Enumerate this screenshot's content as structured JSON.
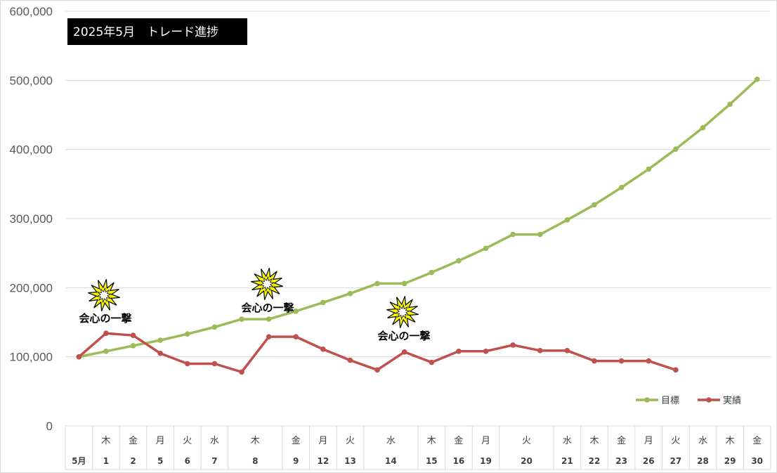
{
  "chart_data": {
    "type": "line",
    "title": "2025年5月　トレード進捗",
    "ylim": [
      0,
      600000
    ],
    "yticks": [
      "0",
      "100,000",
      "200,000",
      "300,000",
      "400,000",
      "500,000",
      "600,000"
    ],
    "ytick_values": [
      0,
      100000,
      200000,
      300000,
      400000,
      500000,
      600000
    ],
    "categories": [
      "5月",
      "1",
      "2",
      "5",
      "6",
      "7",
      "8",
      "",
      "9",
      "12",
      "13",
      "14",
      "",
      "15",
      "16",
      "19",
      "20",
      "",
      "21",
      "22",
      "23",
      "26",
      "27",
      "28",
      "29",
      "30"
    ],
    "weekdays": [
      "",
      "木",
      "金",
      "月",
      "火",
      "水",
      "木",
      "",
      "金",
      "月",
      "火",
      "水",
      "",
      "木",
      "金",
      "月",
      "火",
      "",
      "水",
      "木",
      "金",
      "月",
      "火",
      "水",
      "木",
      "金"
    ],
    "series": [
      {
        "name": "目標",
        "color": "#9BBB59",
        "values": [
          100000,
          108000,
          116000,
          124000,
          133000,
          143000,
          154500,
          154500,
          166000,
          178500,
          191500,
          206000,
          206000,
          222000,
          239000,
          257000,
          277000,
          277000,
          298000,
          320000,
          345000,
          371500,
          400500,
          431500,
          465500,
          501500
        ]
      },
      {
        "name": "実績",
        "color": "#C0504D",
        "values": [
          100000,
          134000,
          131000,
          105000,
          90000,
          90000,
          78000,
          129000,
          129000,
          111000,
          95000,
          81000,
          107000,
          92000,
          108000,
          108000,
          117000,
          109000,
          109000,
          94000,
          94000,
          94000,
          81000,
          null,
          null,
          null
        ]
      }
    ],
    "annotations": [
      {
        "text": "会心の一撃",
        "category_index": 1
      },
      {
        "text": "会心の一撃",
        "category_index": 7
      },
      {
        "text": "会心の一撃",
        "category_index": 12
      }
    ],
    "legend_position": "bottom-right",
    "grid": true
  }
}
